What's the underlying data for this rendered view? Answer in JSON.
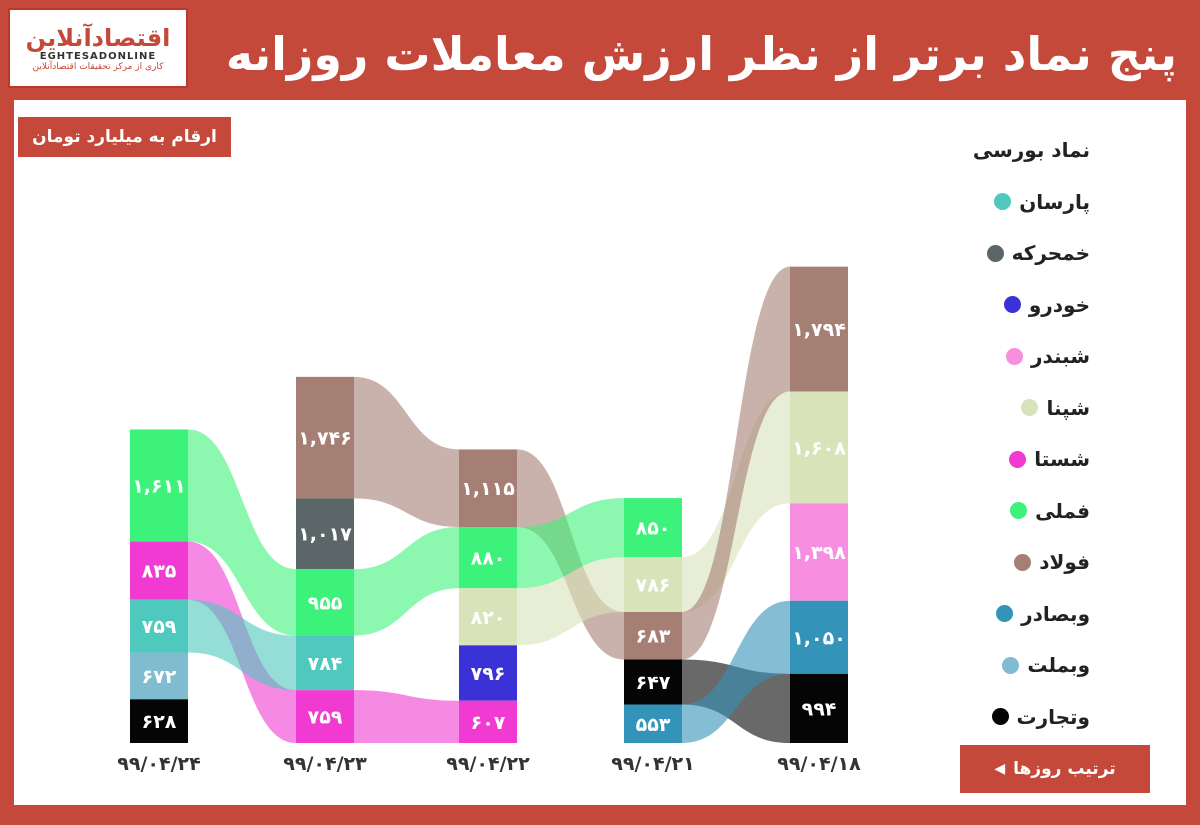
{
  "title": "پنج نماد برتر از نظر ارزش معاملات روزانه",
  "logo": {
    "name": "اقتصادآنلاین",
    "latin": "EGHTESADONLINE",
    "tagline": "کاری از مرکز تحقیقات اقتصادآنلاین"
  },
  "unit_label": "ارقام به میلیارد تومان",
  "order_label": "ترتیب روزها",
  "order_arrow": "◀",
  "legend": {
    "title": "نماد بورسی",
    "items": [
      {
        "label": "پارسان",
        "color": "#4fc8be"
      },
      {
        "label": "خمحرکه",
        "color": "#5b6669"
      },
      {
        "label": "خودرو",
        "color": "#3a32d6"
      },
      {
        "label": "شبندر",
        "color": "#f78ee0"
      },
      {
        "label": "شپنا",
        "color": "#d9e3b9"
      },
      {
        "label": "شستا",
        "color": "#f03ad1"
      },
      {
        "label": "فملی",
        "color": "#3df27a"
      },
      {
        "label": "فولاد",
        "color": "#a57f73"
      },
      {
        "label": "وبصادر",
        "color": "#3493b8"
      },
      {
        "label": "وبملت",
        "color": "#7fbcd0"
      },
      {
        "label": "وتجارت",
        "color": "#050505"
      }
    ]
  },
  "chart_data": {
    "type": "bar",
    "subtype": "stacked bump chart (top 5 symbols per day)",
    "categories": [
      "۹۹/۰۴/۲۴",
      "۹۹/۰۴/۲۳",
      "۹۹/۰۴/۲۲",
      "۹۹/۰۴/۲۱",
      "۹۹/۰۴/۱۸"
    ],
    "days": [
      {
        "date": "۹۹/۰۴/۲۴",
        "stack": [
          {
            "symbol": "فملی",
            "value": 1611,
            "label": "۱,۶۱۱"
          },
          {
            "symbol": "شستا",
            "value": 835,
            "label": "۸۳۵"
          },
          {
            "symbol": "پارسان",
            "value": 759,
            "label": "۷۵۹"
          },
          {
            "symbol": "وبملت",
            "value": 672,
            "label": "۶۷۲"
          },
          {
            "symbol": "وتجارت",
            "value": 628,
            "label": "۶۲۸"
          }
        ]
      },
      {
        "date": "۹۹/۰۴/۲۳",
        "stack": [
          {
            "symbol": "فولاد",
            "value": 1746,
            "label": "۱,۷۴۶"
          },
          {
            "symbol": "خمحرکه",
            "value": 1017,
            "label": "۱,۰۱۷"
          },
          {
            "symbol": "فملی",
            "value": 955,
            "label": "۹۵۵"
          },
          {
            "symbol": "پارسان",
            "value": 784,
            "label": "۷۸۴"
          },
          {
            "symbol": "شستا",
            "value": 759,
            "label": "۷۵۹"
          }
        ]
      },
      {
        "date": "۹۹/۰۴/۲۲",
        "stack": [
          {
            "symbol": "فولاد",
            "value": 1115,
            "label": "۱,۱۱۵"
          },
          {
            "symbol": "فملی",
            "value": 880,
            "label": "۸۸۰"
          },
          {
            "symbol": "شپنا",
            "value": 820,
            "label": "۸۲۰"
          },
          {
            "symbol": "خودرو",
            "value": 796,
            "label": "۷۹۶"
          },
          {
            "symbol": "شستا",
            "value": 607,
            "label": "۶۰۷"
          }
        ]
      },
      {
        "date": "۹۹/۰۴/۲۱",
        "stack": [
          {
            "symbol": "فملی",
            "value": 850,
            "label": "۸۵۰"
          },
          {
            "symbol": "شپنا",
            "value": 786,
            "label": "۷۸۶"
          },
          {
            "symbol": "فولاد",
            "value": 683,
            "label": "۶۸۳"
          },
          {
            "symbol": "وتجارت",
            "value": 647,
            "label": "۶۴۷"
          },
          {
            "symbol": "وبصادر",
            "value": 553,
            "label": "۵۵۳"
          }
        ]
      },
      {
        "date": "۹۹/۰۴/۱۸",
        "stack": [
          {
            "symbol": "فولاد",
            "value": 1794,
            "label": "۱,۷۹۴"
          },
          {
            "symbol": "شپنا",
            "value": 1608,
            "label": "۱,۶۰۸"
          },
          {
            "symbol": "شبندر",
            "value": 1398,
            "label": "۱,۳۹۸"
          },
          {
            "symbol": "وبصادر",
            "value": 1050,
            "label": "۱,۰۵۰"
          },
          {
            "symbol": "وتجارت",
            "value": 994,
            "label": "۹۹۴"
          }
        ]
      }
    ],
    "value_unit": "میلیارد تومان"
  }
}
